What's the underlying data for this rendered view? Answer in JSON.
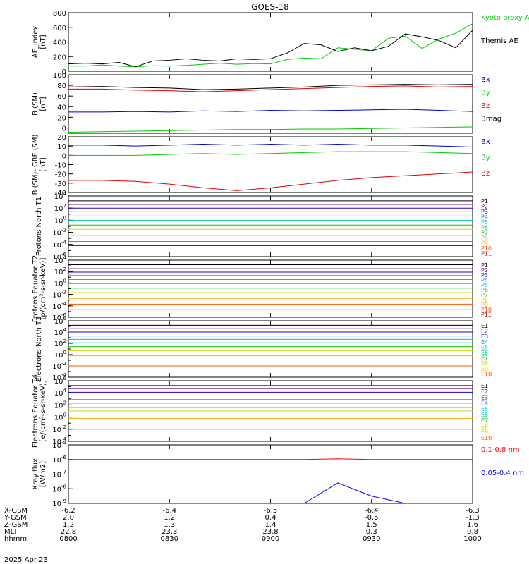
{
  "title": "GOES-18",
  "date_label": "2025 Apr 23",
  "colors": {
    "black": "#000000",
    "green": "#00cc00",
    "red": "#dd0000",
    "blue": "#0000cc",
    "xray_red": "#ff0000",
    "xray_blue": "#0000ff",
    "ch": [
      "#000000",
      "#7a0077",
      "#1a00c8",
      "#0077ff",
      "#00bbdd",
      "#00c89a",
      "#00c800",
      "#c8dd00",
      "#ffaa00",
      "#ff5500",
      "#bb0000",
      "#990000"
    ]
  },
  "ephemeris": {
    "rows": [
      {
        "label": "X-GSM",
        "values": [
          "-6.2",
          "-6.4",
          "-6.5",
          "-6.4",
          "-6.3"
        ]
      },
      {
        "label": "Y-GSM",
        "values": [
          "2.0",
          "1.2",
          "0.4",
          "-0.5",
          "-1.3"
        ]
      },
      {
        "label": "Z-GSM",
        "values": [
          "1.2",
          "1.3",
          "1.4",
          "1.5",
          "1.6"
        ]
      },
      {
        "label": "MLT",
        "values": [
          "22.8",
          "23.3",
          "23.8",
          "0.3",
          "0.8"
        ]
      },
      {
        "label": "hhmm",
        "values": [
          "0800",
          "0830",
          "0900",
          "0930",
          "1000"
        ]
      }
    ]
  },
  "chart_data": [
    {
      "type": "line",
      "title": "GOES-18",
      "ylabel": "AE_index [nT]",
      "ylim": [
        0,
        800
      ],
      "yticks": [
        "0",
        "200",
        "400",
        "600",
        "800"
      ],
      "x": [
        0,
        5,
        10,
        15,
        20,
        25,
        30,
        35,
        40,
        45,
        50,
        55,
        60,
        65,
        70,
        75,
        80,
        85,
        90,
        95,
        100,
        105,
        110,
        115,
        120
      ],
      "series": [
        {
          "name": "Kyoto proxy AE",
          "color": "green",
          "values": [
            70,
            70,
            85,
            70,
            60,
            75,
            70,
            80,
            95,
            110,
            95,
            105,
            100,
            160,
            180,
            170,
            320,
            300,
            280,
            450,
            480,
            310,
            440,
            520,
            650
          ]
        },
        {
          "name": "Themis AE",
          "color": "black",
          "values": [
            100,
            110,
            100,
            120,
            60,
            140,
            150,
            170,
            150,
            140,
            170,
            160,
            170,
            250,
            380,
            360,
            270,
            320,
            280,
            340,
            510,
            470,
            420,
            320,
            560
          ]
        }
      ],
      "legend": [
        "Kyoto proxy AE",
        "Themis AE"
      ]
    },
    {
      "type": "line",
      "ylabel": "B (SM) [nT]",
      "ylim": [
        -10,
        100
      ],
      "yticks": [
        "0",
        "20",
        "40",
        "60",
        "80",
        "100"
      ],
      "x": [
        0,
        10,
        20,
        30,
        40,
        50,
        60,
        70,
        80,
        90,
        100,
        110,
        120
      ],
      "series": [
        {
          "name": "Bmag",
          "color": "black",
          "values": [
            77,
            78,
            76,
            75,
            72,
            73,
            75,
            77,
            80,
            81,
            82,
            81,
            82
          ]
        },
        {
          "name": "Bx",
          "color": "blue",
          "values": [
            30,
            30,
            31,
            30,
            32,
            31,
            33,
            32,
            33,
            34,
            35,
            33,
            31
          ]
        },
        {
          "name": "By",
          "color": "green",
          "values": [
            -8,
            -7,
            -6,
            -5,
            -4,
            -3,
            -3,
            -2,
            -2,
            -1,
            0,
            1,
            2
          ]
        },
        {
          "name": "Bz",
          "color": "red",
          "values": [
            73,
            73,
            71,
            70,
            68,
            70,
            72,
            74,
            76,
            78,
            79,
            77,
            78
          ]
        }
      ],
      "legend": [
        "Bx",
        "By",
        "Bz",
        "Bmag"
      ]
    },
    {
      "type": "line",
      "ylabel": "B (SM)-IGRF (SM) [nT]",
      "ylim": [
        -40,
        20
      ],
      "yticks": [
        "-40",
        "-30",
        "-20",
        "-10",
        "0",
        "10",
        "20"
      ],
      "x": [
        0,
        10,
        20,
        30,
        40,
        50,
        60,
        70,
        80,
        90,
        100,
        110,
        120
      ],
      "series": [
        {
          "name": "Bx",
          "color": "blue",
          "values": [
            11,
            11,
            10,
            11,
            12,
            11,
            12,
            11,
            12,
            11,
            11,
            10,
            9
          ]
        },
        {
          "name": "By",
          "color": "green",
          "values": [
            0,
            0,
            0,
            1,
            2,
            1,
            2,
            3,
            4,
            4,
            4,
            3,
            2
          ]
        },
        {
          "name": "Bz",
          "color": "red",
          "values": [
            -27,
            -27,
            -28,
            -31,
            -35,
            -38,
            -35,
            -31,
            -27,
            -24,
            -22,
            -20,
            -18
          ]
        }
      ],
      "legend": [
        "Bx",
        "By",
        "Bz"
      ]
    },
    {
      "type": "line",
      "log": true,
      "ylabel": "Protons North T1",
      "ylim": [
        -6,
        4
      ],
      "yticks": [
        "10^4",
        "10^2",
        "10^0",
        "10^-2",
        "10^-4",
        "10^-6"
      ],
      "x": [
        0,
        120
      ],
      "levels": [
        3.2,
        2.6,
        2.0,
        1.4,
        0.7,
        0.0,
        -0.8,
        -1.5,
        -2.5,
        -3.5,
        -4.2
      ],
      "legend": [
        "P1",
        "P2",
        "P3",
        "P4",
        "P5",
        "P6",
        "P7",
        "P8",
        "P9",
        "P10",
        "P11"
      ]
    },
    {
      "type": "line",
      "log": true,
      "ylabel": "Protons Equator T2 [p/(cm²-s-sr-keV)]",
      "ylim": [
        -6,
        4
      ],
      "yticks": [
        "10^4",
        "10^2",
        "10^0",
        "10^-2",
        "10^-4",
        "10^-6"
      ],
      "x": [
        0,
        120
      ],
      "levels": [
        3.2,
        2.5,
        1.9,
        1.3,
        0.6,
        -0.1,
        -0.9,
        -1.7,
        -2.7,
        -3.7,
        -4.6
      ],
      "legend": [
        "P1",
        "P2",
        "P3",
        "P4",
        "P5",
        "P6",
        "P7",
        "P8",
        "P9",
        "P10",
        "P11"
      ]
    },
    {
      "type": "line",
      "log": true,
      "ylabel": "Electrons North T3",
      "ylim": [
        -4,
        6
      ],
      "yticks": [
        "10^6",
        "10^4",
        "10^2",
        "10^0",
        "10^-2",
        "10^-4"
      ],
      "x": [
        0,
        120
      ],
      "levels": [
        5.2,
        4.6,
        4.0,
        3.3,
        2.7,
        2.1,
        1.4,
        0.7,
        -0.2,
        -2.0
      ],
      "legend": [
        "E1",
        "E2",
        "E3",
        "E4",
        "E5",
        "E6",
        "E7",
        "E8",
        "E9",
        "E10"
      ]
    },
    {
      "type": "line",
      "log": true,
      "ylabel": "Electrons Equator T4 [e/(cm²-s-sr-keV)]",
      "ylim": [
        -4,
        6
      ],
      "yticks": [
        "10^6",
        "10^4",
        "10^2",
        "10^0",
        "10^-2",
        "10^-4"
      ],
      "x": [
        0,
        120
      ],
      "levels": [
        5.2,
        4.7,
        4.1,
        3.5,
        2.9,
        2.3,
        1.6,
        1.0,
        -0.2,
        -2.0
      ],
      "legend": [
        "E1",
        "E2",
        "E3",
        "E4",
        "E5",
        "E6",
        "E7",
        "E8",
        "E9",
        "E10"
      ]
    },
    {
      "type": "line",
      "log": true,
      "ylabel": "Xray flux [W/m2]",
      "ylim": [
        -9,
        -5
      ],
      "yticks": [
        "10^-5",
        "10^-6",
        "10^-7",
        "10^-8",
        "10^-9"
      ],
      "x": [
        0,
        10,
        20,
        30,
        40,
        50,
        60,
        70,
        80,
        90,
        100,
        110,
        120
      ],
      "series": [
        {
          "name": "0.1-0.8 nm",
          "color": "xray_red",
          "values": [
            -6.0,
            -6.0,
            -6.0,
            -6.0,
            -6.0,
            -6.0,
            -6.0,
            -6.0,
            -5.95,
            -6.0,
            -6.0,
            -6.0,
            -6.0
          ]
        },
        {
          "name": "0.05-0.4 nm",
          "color": "xray_blue",
          "values": [
            -9,
            -9,
            -9,
            -9,
            -9,
            -9,
            -9,
            -9,
            -7.6,
            -8.5,
            -9,
            -9,
            -9
          ]
        }
      ],
      "legend": [
        "0.1-0.8 nm",
        "0.05-0.4 nm"
      ]
    }
  ]
}
